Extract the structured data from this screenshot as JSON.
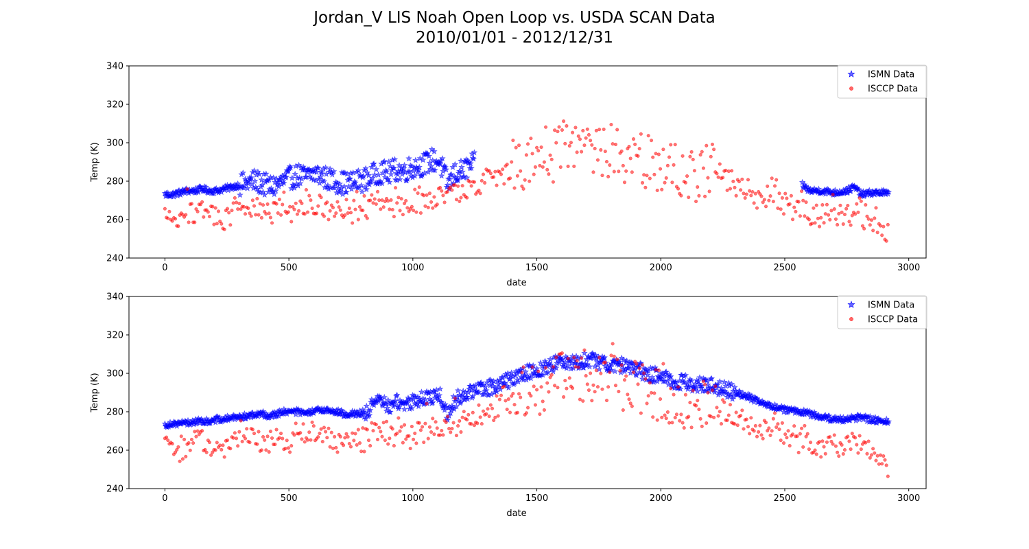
{
  "figure": {
    "title_line1": "Jordan_V LIS Noah Open Loop vs. USDA SCAN Data",
    "title_line2": "2010/01/01 - 2012/12/31"
  },
  "colors": {
    "ismn": "#0000ff",
    "isccp": "#ff0000"
  },
  "chart_data": [
    {
      "type": "scatter",
      "xlabel": "date",
      "ylabel": "Temp (K)",
      "xlim": [
        -145,
        3070
      ],
      "ylim": [
        240,
        340
      ],
      "xticks": [
        0,
        500,
        1000,
        1500,
        2000,
        2500,
        3000
      ],
      "yticks": [
        240,
        260,
        280,
        300,
        320,
        340
      ],
      "legend_position": "top-right",
      "grid": false,
      "series": [
        {
          "name": "ISMN Data",
          "marker": "star",
          "color": "#0000ff",
          "x": [
            0,
            30,
            60,
            90,
            120,
            150,
            180,
            210,
            240,
            270,
            300,
            330,
            360,
            390,
            420,
            450,
            480,
            510,
            540,
            570,
            600,
            630,
            660,
            690,
            720,
            750,
            780,
            810,
            840,
            870,
            900,
            930,
            960,
            990,
            1020,
            1050,
            1080,
            1110,
            1140,
            1170,
            1200,
            1230,
            1250,
            2570,
            2600,
            2650,
            2700,
            2750,
            2780,
            2810,
            2850,
            2900,
            2920
          ],
          "y": [
            273,
            273,
            274,
            275,
            275,
            276,
            275,
            275,
            276,
            277,
            278,
            279,
            280,
            279,
            277,
            278,
            280,
            282,
            283,
            282,
            284,
            283,
            281,
            280,
            279,
            279,
            280,
            281,
            283,
            285,
            284,
            286,
            285,
            287,
            288,
            289,
            291,
            290,
            278,
            284,
            285,
            288,
            289,
            278,
            275,
            275,
            274,
            275,
            277,
            273,
            274,
            274,
            273
          ]
        },
        {
          "name": "ISCCP Data",
          "marker": "circle",
          "color": "#ff0000",
          "x": [
            0,
            30,
            60,
            90,
            120,
            150,
            180,
            210,
            240,
            270,
            300,
            330,
            360,
            390,
            420,
            450,
            480,
            510,
            540,
            570,
            600,
            630,
            660,
            690,
            720,
            750,
            780,
            810,
            840,
            870,
            900,
            930,
            960,
            990,
            1020,
            1050,
            1080,
            1110,
            1140,
            1170,
            1200,
            1250,
            1300,
            1350,
            1400,
            1450,
            1500,
            1550,
            1600,
            1650,
            1700,
            1750,
            1800,
            1850,
            1900,
            1950,
            2000,
            2050,
            2100,
            2150,
            2200,
            2250,
            2300,
            2350,
            2400,
            2450,
            2500,
            2550,
            2600,
            2650,
            2700,
            2750,
            2800,
            2850,
            2900,
            2920
          ],
          "y": [
            263,
            260,
            258,
            262,
            264,
            265,
            263,
            262,
            260,
            264,
            266,
            268,
            266,
            264,
            263,
            266,
            267,
            264,
            266,
            268,
            269,
            267,
            266,
            265,
            264,
            264,
            265,
            266,
            268,
            270,
            269,
            267,
            268,
            266,
            269,
            270,
            271,
            272,
            273,
            274,
            275,
            276,
            281,
            283,
            286,
            290,
            292,
            295,
            298,
            297,
            299,
            297,
            296,
            294,
            292,
            290,
            288,
            285,
            284,
            283,
            286,
            282,
            278,
            275,
            270,
            273,
            268,
            265,
            263,
            262,
            262,
            263,
            262,
            260,
            257,
            250
          ]
        }
      ]
    },
    {
      "type": "scatter",
      "xlabel": "date",
      "ylabel": "Temp (K)",
      "xlim": [
        -145,
        3070
      ],
      "ylim": [
        240,
        340
      ],
      "xticks": [
        0,
        500,
        1000,
        1500,
        2000,
        2500,
        3000
      ],
      "yticks": [
        240,
        260,
        280,
        300,
        320,
        340
      ],
      "legend_position": "top-right",
      "grid": false,
      "series": [
        {
          "name": "ISMN Data",
          "marker": "star",
          "color": "#0000ff",
          "x": [
            0,
            30,
            60,
            90,
            120,
            150,
            180,
            210,
            240,
            270,
            300,
            330,
            360,
            390,
            420,
            450,
            480,
            510,
            540,
            570,
            600,
            630,
            660,
            690,
            720,
            750,
            780,
            810,
            840,
            870,
            900,
            930,
            960,
            990,
            1020,
            1050,
            1080,
            1110,
            1140,
            1170,
            1200,
            1250,
            1300,
            1350,
            1400,
            1450,
            1500,
            1550,
            1600,
            1650,
            1700,
            1750,
            1800,
            1850,
            1900,
            1950,
            2000,
            2050,
            2100,
            2150,
            2200,
            2250,
            2300,
            2350,
            2400,
            2450,
            2500,
            2550,
            2600,
            2650,
            2700,
            2750,
            2800,
            2850,
            2900,
            2920
          ],
          "y": [
            273,
            274,
            274,
            274,
            275,
            275,
            275,
            276,
            276,
            277,
            277,
            278,
            278,
            279,
            278,
            279,
            280,
            280,
            280,
            279,
            280,
            281,
            281,
            280,
            279,
            279,
            279,
            280,
            283,
            286,
            283,
            285,
            284,
            285,
            286,
            287,
            288,
            289,
            278,
            286,
            289,
            291,
            292,
            295,
            297,
            300,
            302,
            304,
            306,
            306,
            307,
            306,
            305,
            304,
            302,
            300,
            298,
            296,
            295,
            294,
            294,
            292,
            290,
            288,
            285,
            283,
            281,
            280,
            279,
            277,
            276,
            276,
            277,
            276,
            275,
            275
          ]
        },
        {
          "name": "ISCCP Data",
          "marker": "circle",
          "color": "#ff0000",
          "x": [
            0,
            30,
            60,
            90,
            120,
            150,
            180,
            210,
            240,
            270,
            300,
            330,
            360,
            390,
            420,
            450,
            480,
            510,
            540,
            570,
            600,
            630,
            660,
            690,
            720,
            750,
            780,
            810,
            840,
            870,
            900,
            930,
            960,
            990,
            1020,
            1050,
            1080,
            1110,
            1140,
            1170,
            1200,
            1250,
            1300,
            1350,
            1400,
            1450,
            1500,
            1550,
            1600,
            1650,
            1700,
            1750,
            1800,
            1850,
            1900,
            1950,
            2000,
            2050,
            2100,
            2150,
            2200,
            2250,
            2300,
            2350,
            2400,
            2450,
            2500,
            2550,
            2600,
            2650,
            2700,
            2750,
            2800,
            2850,
            2900,
            2920
          ],
          "y": [
            263,
            260,
            258,
            262,
            264,
            265,
            263,
            262,
            260,
            264,
            266,
            268,
            266,
            264,
            263,
            266,
            267,
            264,
            266,
            268,
            269,
            267,
            266,
            265,
            264,
            264,
            265,
            266,
            268,
            270,
            269,
            267,
            268,
            266,
            269,
            270,
            271,
            272,
            273,
            274,
            275,
            276,
            281,
            283,
            286,
            290,
            292,
            295,
            298,
            297,
            299,
            297,
            296,
            294,
            292,
            290,
            288,
            285,
            284,
            283,
            286,
            282,
            278,
            275,
            270,
            273,
            268,
            265,
            263,
            262,
            262,
            263,
            262,
            260,
            257,
            250
          ]
        }
      ]
    }
  ]
}
